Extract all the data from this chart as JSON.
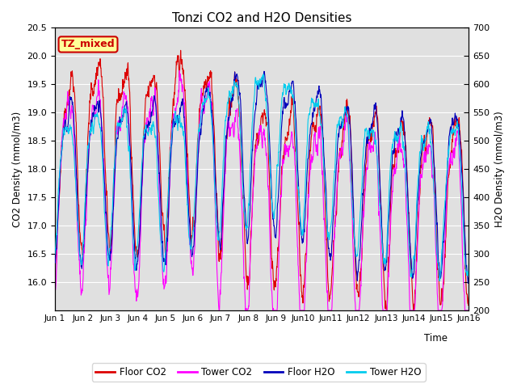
{
  "title": "Tonzi CO2 and H2O Densities",
  "xlabel": "Time",
  "ylabel_left": "CO2 Density (mmol/m3)",
  "ylabel_right": "H2O Density (mmol/m3)",
  "ylim_left": [
    15.5,
    20.5
  ],
  "ylim_right": [
    200,
    700
  ],
  "yticks_left": [
    16.0,
    16.5,
    17.0,
    17.5,
    18.0,
    18.5,
    19.0,
    19.5,
    20.0,
    20.5
  ],
  "yticks_right": [
    200,
    250,
    300,
    350,
    400,
    450,
    500,
    550,
    600,
    650,
    700
  ],
  "annotation": "TZ_mixed",
  "annotation_color": "#cc0000",
  "annotation_bg": "#ffff99",
  "bg_color": "#e0e0e0",
  "colors": {
    "floor_co2": "#dd0000",
    "tower_co2": "#ff00ff",
    "floor_h2o": "#0000bb",
    "tower_h2o": "#00ccee"
  },
  "legend_labels": [
    "Floor CO2",
    "Tower CO2",
    "Floor H2O",
    "Tower H2O"
  ],
  "n_days": 15,
  "points_per_day": 96,
  "title_fontsize": 11
}
